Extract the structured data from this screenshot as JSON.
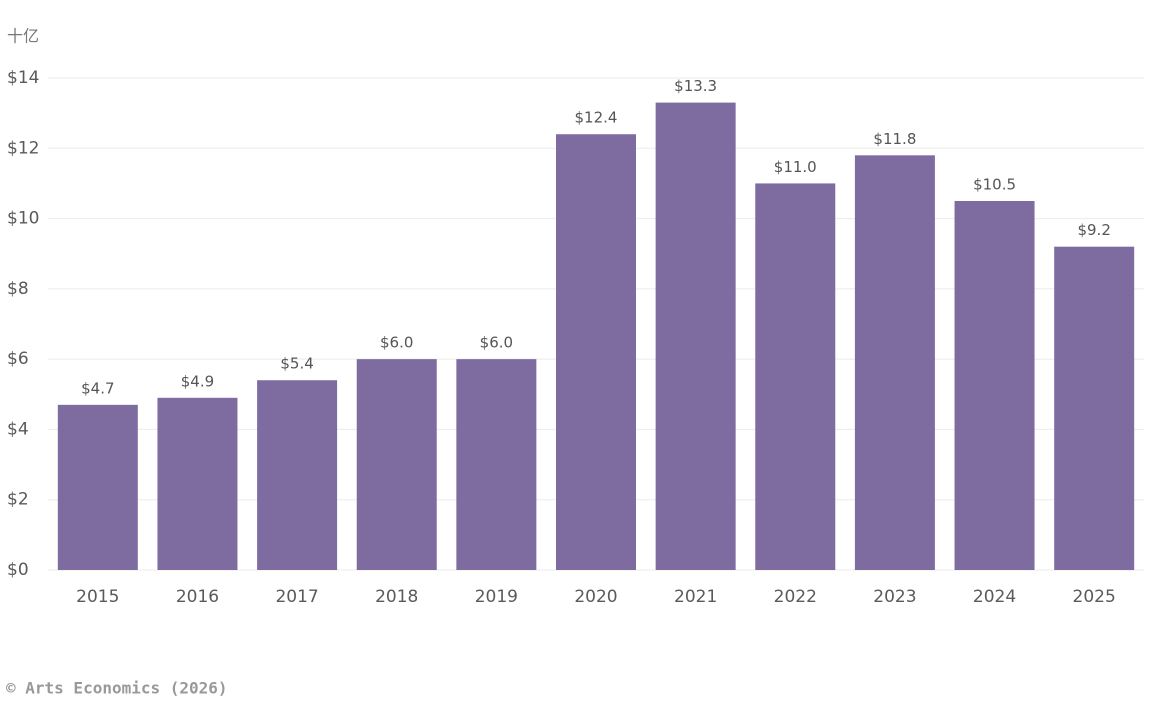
{
  "chart_data": {
    "type": "bar",
    "unit_label": "十亿",
    "categories": [
      "2015",
      "2016",
      "2017",
      "2018",
      "2019",
      "2020",
      "2021",
      "2022",
      "2023",
      "2024",
      "2025"
    ],
    "values": [
      4.7,
      4.9,
      5.4,
      6.0,
      6.0,
      12.4,
      13.3,
      11.0,
      11.8,
      10.5,
      9.2
    ],
    "value_labels": [
      "$4.7",
      "$4.9",
      "$5.4",
      "$6.0",
      "$6.0",
      "$12.4",
      "$13.3",
      "$11.0",
      "$11.8",
      "$10.5",
      "$9.2"
    ],
    "color": "#7e6ca1",
    "ylim": [
      0,
      14
    ],
    "yticks": [
      {
        "value": 0,
        "label": "$0"
      },
      {
        "value": 2,
        "label": "$2"
      },
      {
        "value": 4,
        "label": "$4"
      },
      {
        "value": 6,
        "label": "$6"
      },
      {
        "value": 8,
        "label": "$8"
      },
      {
        "value": 10,
        "label": "$10"
      },
      {
        "value": 12,
        "label": "$12"
      },
      {
        "value": 14,
        "label": "$14"
      }
    ],
    "grid": true,
    "source": "© Arts Economics (2026)"
  }
}
